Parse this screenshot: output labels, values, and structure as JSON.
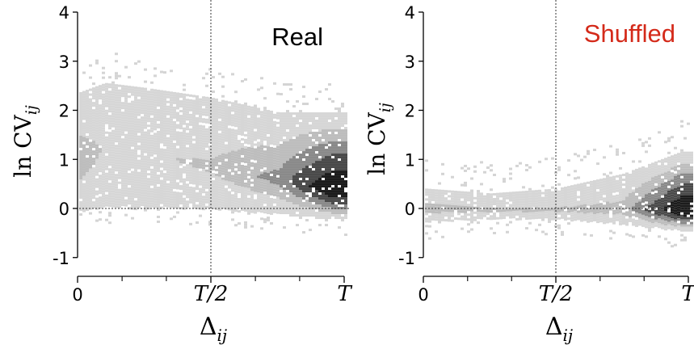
{
  "chart_data": [
    {
      "type": "heatmap",
      "panel": "left",
      "title": "Real",
      "title_color": "#000000",
      "xlabel_base": "Δ",
      "xlabel_sub": "ij",
      "ylabel_main": "ln CV",
      "ylabel_sub": "ij",
      "x_ticks": [
        {
          "value": 0,
          "label": "0"
        },
        {
          "value": 0.5,
          "label": "T/2"
        },
        {
          "value": 1,
          "label": "T"
        }
      ],
      "x_minor_ticks": [
        0.167,
        0.333,
        0.667,
        0.833
      ],
      "y_ticks": [
        -1,
        0,
        1,
        2,
        3,
        4
      ],
      "xlim": [
        0,
        1
      ],
      "ylim": [
        -1.2,
        4.2
      ],
      "reference_lines": {
        "horizontal_y": 0,
        "vertical_x": 0.5,
        "style": "dotted"
      },
      "density_profile": [
        {
          "x": 0.0,
          "center": 1.0,
          "spread_low": -0.05,
          "spread_high": 2.4,
          "peak_density": 0.35
        },
        {
          "x": 0.1,
          "center": 1.25,
          "spread_low": 0.05,
          "spread_high": 2.6,
          "peak_density": 0.2
        },
        {
          "x": 0.25,
          "center": 1.15,
          "spread_low": 0.05,
          "spread_high": 2.5,
          "peak_density": 0.2
        },
        {
          "x": 0.5,
          "center": 0.85,
          "spread_low": 0.0,
          "spread_high": 2.3,
          "peak_density": 0.25
        },
        {
          "x": 0.75,
          "center": 0.6,
          "spread_low": -0.1,
          "spread_high": 2.0,
          "peak_density": 0.45
        },
        {
          "x": 0.95,
          "center": 0.4,
          "spread_low": -0.2,
          "spread_high": 2.0,
          "peak_density": 1.0
        }
      ]
    },
    {
      "type": "heatmap",
      "panel": "right",
      "title": "Shuffled",
      "title_color": "#d42a1a",
      "xlabel_base": "Δ",
      "xlabel_sub": "ij",
      "ylabel_main": "ln CV",
      "ylabel_sub": "ij",
      "x_ticks": [
        {
          "value": 0,
          "label": "0"
        },
        {
          "value": 0.5,
          "label": "T/2"
        },
        {
          "value": 1,
          "label": "T"
        }
      ],
      "x_minor_ticks": [
        0.167,
        0.333,
        0.667,
        0.833
      ],
      "y_ticks": [
        -1,
        0,
        1,
        2,
        3,
        4
      ],
      "xlim": [
        0,
        1
      ],
      "ylim": [
        -1.2,
        4.2
      ],
      "reference_lines": {
        "horizontal_y": 0,
        "vertical_x": 0.5,
        "style": "dotted"
      },
      "density_profile": [
        {
          "x": 0.0,
          "center": 0.0,
          "spread_low": -0.25,
          "spread_high": 0.45,
          "peak_density": 0.3
        },
        {
          "x": 0.25,
          "center": -0.02,
          "spread_low": -0.2,
          "spread_high": 0.35,
          "peak_density": 0.25
        },
        {
          "x": 0.5,
          "center": -0.02,
          "spread_low": -0.2,
          "spread_high": 0.45,
          "peak_density": 0.25
        },
        {
          "x": 0.75,
          "center": -0.02,
          "spread_low": -0.3,
          "spread_high": 0.75,
          "peak_density": 0.3
        },
        {
          "x": 0.97,
          "center": -0.02,
          "spread_low": -0.45,
          "spread_high": 1.2,
          "peak_density": 1.0
        }
      ]
    }
  ]
}
